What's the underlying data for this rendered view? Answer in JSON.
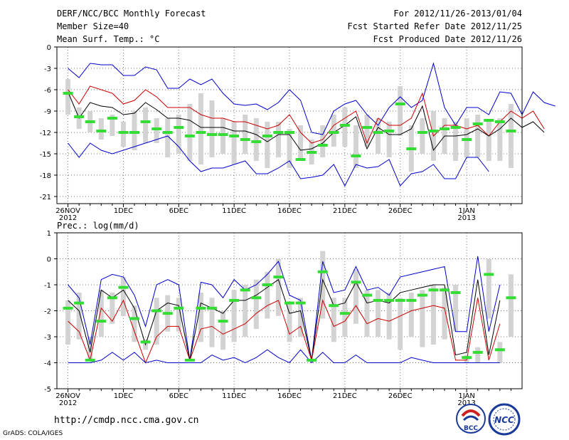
{
  "header": {
    "title": "DERF/NCC/BCC Monthly Forecast",
    "member": "Member Size=40",
    "variable": "Mean Surf. Temp.: °C",
    "period": "For 2012/11/26-2013/01/04",
    "started": "Fcst Started Refer Date 2012/11/25",
    "produced": "Fcst Produced Date 2012/11/26"
  },
  "footer": {
    "url": "http://cmdp.ncc.cma.gov.cn",
    "grads": "GrADS: COLA/IGES",
    "bcc_logo_text": "BCC",
    "ncc_logo_text": "NCC"
  },
  "colors": {
    "upper": "#0000cc",
    "spread": "#cc0000",
    "mean": "#000000",
    "box": "#d3d3d3",
    "median": "#33dd33"
  },
  "x_ticks": [
    {
      "day": 0,
      "label": "26NOV",
      "sub": "2012"
    },
    {
      "day": 5,
      "label": "1DEC",
      "sub": ""
    },
    {
      "day": 10,
      "label": "6DEC",
      "sub": ""
    },
    {
      "day": 15,
      "label": "11DEC",
      "sub": ""
    },
    {
      "day": 20,
      "label": "16DEC",
      "sub": ""
    },
    {
      "day": 25,
      "label": "21DEC",
      "sub": ""
    },
    {
      "day": 30,
      "label": "26DEC",
      "sub": ""
    },
    {
      "day": 36,
      "label": "1JAN",
      "sub": "2013"
    }
  ],
  "chart_data": [
    {
      "type": "line",
      "title": "Mean Surf. Temp.: °C",
      "x_unit": "days since 26NOV2012",
      "ylim": [
        -22,
        0
      ],
      "yticks": [
        0,
        -3,
        -6,
        -9,
        -12,
        -15,
        -18,
        -21
      ],
      "series": [
        {
          "name": "max",
          "color": "#0000cc",
          "values": [
            -13.5,
            -15.5,
            -13.5,
            -14.5,
            -15,
            -14.5,
            -14,
            -13.5,
            -13,
            -12.5,
            -14,
            -16,
            -17.5,
            -17,
            -17,
            -16.5,
            -16,
            -17.8,
            -17.8,
            -17,
            -16,
            -18.5,
            -18.3,
            -18,
            -16.5,
            -19.5,
            -16.5,
            -17,
            -16.8,
            -15.8,
            -19.5,
            -17.8,
            -17.5,
            -16.5,
            -18.5,
            -18.5,
            -15.5,
            -15.5,
            -17.5
          ]
        },
        {
          "name": "min",
          "color": "#0000cc",
          "values": [
            -3,
            -4.3,
            -2.3,
            -2.5,
            -2.5,
            -4,
            -4,
            -2.8,
            -3.2,
            -5.8,
            -5.8,
            -4.5,
            -5.3,
            -4.5,
            -6.5,
            -8,
            -8.2,
            -8,
            -8.8,
            -7.8,
            -6,
            -7.5,
            -12,
            -12.3,
            -9,
            -8,
            -7.5,
            -9.5,
            -11,
            -8.5,
            -7,
            -8.5,
            -7.5,
            -2.3,
            -8.5,
            -11,
            -8.5,
            -8.5,
            -9.5,
            -6.3,
            -6.5,
            -9.5,
            -6.3,
            -7.8,
            -8.3
          ]
        },
        {
          "name": "upper",
          "color": "#cc0000",
          "values": [
            -6,
            -8,
            -5.5,
            -6,
            -6.5,
            -8,
            -7.5,
            -6,
            -7,
            -8.5,
            -8.5,
            -8.5,
            -9.5,
            -10,
            -10,
            -10.5,
            -10.5,
            -11,
            -11.5,
            -11,
            -9.5,
            -12,
            -13.5,
            -13,
            -11,
            -10,
            -9,
            -13.5,
            -10,
            -11,
            -11,
            -10,
            -6.5,
            -12.5,
            -11,
            -11,
            -11.5,
            -11,
            -12.5,
            -10.5,
            -9,
            -10,
            -9,
            -11.5
          ]
        },
        {
          "name": "mean",
          "color": "#000000",
          "values": [
            -6.3,
            -10,
            -7.8,
            -8.3,
            -8.5,
            -9.5,
            -9.3,
            -7.8,
            -8.8,
            -10,
            -10,
            -10.3,
            -11.3,
            -11.3,
            -11.3,
            -11.8,
            -11.8,
            -12.3,
            -13.3,
            -12.3,
            -12.3,
            -14.5,
            -14.3,
            -13.5,
            -12,
            -11,
            -9.8,
            -14.3,
            -11.3,
            -12.3,
            -12.3,
            -11.5,
            -8.3,
            -14.5,
            -12.5,
            -12.5,
            -12.3,
            -11.5,
            -12.5,
            -11.5,
            -10,
            -11.3,
            -10.5,
            -12
          ]
        }
      ],
      "boxes": [
        {
          "day": 0,
          "low": -9.5,
          "high": -4.5,
          "median": -6.5
        },
        {
          "day": 1,
          "low": -11.5,
          "high": -8.5,
          "median": -9.8
        },
        {
          "day": 2,
          "low": -12,
          "high": -9,
          "median": -10.5
        },
        {
          "day": 3,
          "low": -13,
          "high": -10,
          "median": -11.8
        },
        {
          "day": 4,
          "low": -12.5,
          "high": -9.5,
          "median": -10
        },
        {
          "day": 5,
          "low": -14,
          "high": -10.5,
          "median": -12
        },
        {
          "day": 6,
          "low": -14.5,
          "high": -9,
          "median": -12
        },
        {
          "day": 7,
          "low": -13.5,
          "high": -8.5,
          "median": -10.5
        },
        {
          "day": 8,
          "low": -13.5,
          "high": -10,
          "median": -11.5
        },
        {
          "day": 9,
          "low": -15.5,
          "high": -10,
          "median": -12
        },
        {
          "day": 10,
          "low": -15,
          "high": -9.5,
          "median": -11.3
        },
        {
          "day": 11,
          "low": -16,
          "high": -8,
          "median": -12.5
        },
        {
          "day": 12,
          "low": -16.5,
          "high": -6.5,
          "median": -12
        },
        {
          "day": 13,
          "low": -15.5,
          "high": -7.5,
          "median": -12.3
        },
        {
          "day": 14,
          "low": -15,
          "high": -10,
          "median": -12.3
        },
        {
          "day": 15,
          "low": -16.5,
          "high": -10.5,
          "median": -12.5
        },
        {
          "day": 16,
          "low": -15,
          "high": -9.5,
          "median": -13
        },
        {
          "day": 17,
          "low": -16,
          "high": -10,
          "median": -13.3
        },
        {
          "day": 18,
          "low": -17,
          "high": -10.5,
          "median": -12.5
        },
        {
          "day": 19,
          "low": -15.5,
          "high": -10.5,
          "median": -12
        },
        {
          "day": 20,
          "low": -17,
          "high": -11.5,
          "median": -12
        },
        {
          "day": 21,
          "low": -16,
          "high": -11,
          "median": -15.8
        },
        {
          "day": 22,
          "low": -16.5,
          "high": -13,
          "median": -14.8
        },
        {
          "day": 23,
          "low": -15.5,
          "high": -11,
          "median": -13.8
        },
        {
          "day": 24,
          "low": -14,
          "high": -9.5,
          "median": -12
        },
        {
          "day": 25,
          "low": -14,
          "high": -8.5,
          "median": -11
        },
        {
          "day": 26,
          "low": -17,
          "high": -11,
          "median": -15.3
        },
        {
          "day": 27,
          "low": -14,
          "high": -9.5,
          "median": -11.3
        },
        {
          "day": 28,
          "low": -15,
          "high": -10,
          "median": -12
        },
        {
          "day": 29,
          "low": -15.5,
          "high": -10.5,
          "median": -11.8
        },
        {
          "day": 30,
          "low": -12.5,
          "high": -5.5,
          "median": -8
        },
        {
          "day": 31,
          "low": -17.5,
          "high": -11,
          "median": -14.3
        },
        {
          "day": 32,
          "low": -15,
          "high": -10,
          "median": -12
        },
        {
          "day": 33,
          "low": -16,
          "high": -9,
          "median": -11.8
        },
        {
          "day": 34,
          "low": -15,
          "high": -10,
          "median": -11.5
        },
        {
          "day": 35,
          "low": -16,
          "high": -10.5,
          "median": -11.3
        },
        {
          "day": 36,
          "low": -15.5,
          "high": -10,
          "median": -13
        },
        {
          "day": 37,
          "low": -15.5,
          "high": -9.5,
          "median": -10.8
        },
        {
          "day": 38,
          "low": -16,
          "high": -10.5,
          "median": -10.3
        },
        {
          "day": 39,
          "low": -16,
          "high": -10,
          "median": -10.5
        },
        {
          "day": 40,
          "low": -17,
          "high": -8,
          "median": -11.8
        }
      ]
    },
    {
      "type": "line",
      "title": "Prec.: log(mm/d)",
      "x_unit": "days since 26NOV2012",
      "ylim": [
        -5,
        1
      ],
      "yticks": [
        1,
        0,
        -1,
        -2,
        -3,
        -4,
        -5
      ],
      "series": [
        {
          "name": "upper",
          "color": "#0000cc",
          "values": [
            -1,
            -1.5,
            -3.3,
            -0.8,
            -0.6,
            -0.7,
            -1.4,
            -2.6,
            -1,
            -0.8,
            -1,
            -3.9,
            -0.9,
            -1,
            -1.5,
            -0.8,
            -1.2,
            -1,
            -0.6,
            -0.1,
            -1.4,
            -1.6,
            -3.9,
            -0.1,
            -1.3,
            -1.2,
            -0.3,
            -1.2,
            -1.1,
            -1.4,
            -0.7,
            -0.6,
            -0.5,
            -0.4,
            -0.3,
            -2.8,
            -2.8,
            0.1,
            -2.8,
            -1
          ]
        },
        {
          "name": "mean",
          "color": "#000000",
          "values": [
            -1.6,
            -2,
            -3.6,
            -1.2,
            -1.5,
            -1.2,
            -1.9,
            -3.3,
            -2,
            -1.7,
            -1.8,
            -3.9,
            -1.7,
            -1.9,
            -2.1,
            -1.6,
            -1.6,
            -1.4,
            -1.1,
            -0.8,
            -2.1,
            -2,
            -3.9,
            -0.8,
            -1.8,
            -1.7,
            -0.9,
            -1.7,
            -1.6,
            -1.7,
            -1.3,
            -1.2,
            -1.1,
            -1,
            -1,
            -3.7,
            -3.6,
            -0.8,
            -3.7,
            -1.6
          ]
        },
        {
          "name": "lower",
          "color": "#cc0000",
          "values": [
            -2.4,
            -2.8,
            -3.9,
            -1.9,
            -2.4,
            -1.6,
            -2.8,
            -4,
            -3,
            -2.6,
            -2.6,
            -3.9,
            -2.7,
            -2.6,
            -2.9,
            -2.7,
            -2.5,
            -2.1,
            -1.8,
            -1.6,
            -2.9,
            -2.6,
            -3.9,
            -1.6,
            -2.6,
            -2.4,
            -1.8,
            -2.5,
            -2.3,
            -2.4,
            -2.2,
            -2,
            -1.9,
            -1.8,
            -1.9,
            -3.9,
            -3.9,
            -1.5,
            -3.9,
            -2.5
          ]
        },
        {
          "name": "min",
          "color": "#0000cc",
          "values": [
            -4,
            -4,
            -4,
            -3.9,
            -3.6,
            -3.9,
            -3.6,
            -4,
            -3.9,
            -4,
            -4,
            -4,
            -4,
            -3.7,
            -3.9,
            -3.8,
            -4,
            -3.8,
            -3.5,
            -3.8,
            -4,
            -3.5,
            -4,
            -3.6,
            -4,
            -4,
            -3.7,
            -4,
            -4,
            -4,
            -4,
            -3.8,
            -3.9,
            -4,
            -4,
            -4,
            -4,
            -4,
            -4,
            -4
          ]
        }
      ],
      "boxes": [
        {
          "day": 0,
          "low": -3.3,
          "high": -1.6,
          "median": -1.9
        },
        {
          "day": 1,
          "low": -3.1,
          "high": -1.3,
          "median": -1.7
        },
        {
          "day": 2,
          "low": -3.9,
          "high": -3,
          "median": -3.9
        },
        {
          "day": 3,
          "low": -3,
          "high": -1.2,
          "median": -2.4
        },
        {
          "day": 4,
          "low": -2.5,
          "high": -1.3,
          "median": -1.5
        },
        {
          "day": 5,
          "low": -2.2,
          "high": -0.7,
          "median": -1.1
        },
        {
          "day": 6,
          "low": -3.2,
          "high": -1.8,
          "median": -2.3
        },
        {
          "day": 7,
          "low": -3.5,
          "high": -3.1,
          "median": -3.2
        },
        {
          "day": 8,
          "low": -3.3,
          "high": -1.5,
          "median": -2
        },
        {
          "day": 9,
          "low": -2.8,
          "high": -1.4,
          "median": -2.1
        },
        {
          "day": 10,
          "low": -2.8,
          "high": -1.5,
          "median": -1.9
        },
        {
          "day": 11,
          "low": -3.9,
          "high": -3.9,
          "median": -3.9
        },
        {
          "day": 12,
          "low": -3.2,
          "high": -1.3,
          "median": -1.9
        },
        {
          "day": 13,
          "low": -3.4,
          "high": -1.5,
          "median": -1.9
        },
        {
          "day": 14,
          "low": -3.5,
          "high": -2,
          "median": -2.4
        },
        {
          "day": 15,
          "low": -3.2,
          "high": -1.2,
          "median": -1.6
        },
        {
          "day": 16,
          "low": -3,
          "high": -1,
          "median": -1.2
        },
        {
          "day": 17,
          "low": -2.7,
          "high": -0.8,
          "median": -1.5
        },
        {
          "day": 18,
          "low": -2.3,
          "high": -0.5,
          "median": -1
        },
        {
          "day": 19,
          "low": -2.2,
          "high": 0,
          "median": -0.7
        },
        {
          "day": 20,
          "low": -3.2,
          "high": -1.7,
          "median": -1.7
        },
        {
          "day": 21,
          "low": -3,
          "high": -1.5,
          "median": -1.7
        },
        {
          "day": 22,
          "low": -3.9,
          "high": -3.9,
          "median": -3.9
        },
        {
          "day": 23,
          "low": -2.3,
          "high": 0.3,
          "median": -0.5
        },
        {
          "day": 24,
          "low": -3.2,
          "high": -1.5,
          "median": -1.8
        },
        {
          "day": 25,
          "low": -3,
          "high": -1.5,
          "median": -2.1
        },
        {
          "day": 26,
          "low": -2.5,
          "high": -0.4,
          "median": -0.9
        },
        {
          "day": 27,
          "low": -3,
          "high": -1.2,
          "median": -1.4
        },
        {
          "day": 28,
          "low": -3,
          "high": -1.2,
          "median": -1.6
        },
        {
          "day": 29,
          "low": -3.1,
          "high": -1.3,
          "median": -1.6
        },
        {
          "day": 30,
          "low": -3.5,
          "high": -1.5,
          "median": -1.6
        },
        {
          "day": 31,
          "low": -3,
          "high": -1.3,
          "median": -1.6
        },
        {
          "day": 32,
          "low": -3.4,
          "high": -1.2,
          "median": -1.4
        },
        {
          "day": 33,
          "low": -3.3,
          "high": -1,
          "median": -1.2
        },
        {
          "day": 34,
          "low": -3.1,
          "high": -1.1,
          "median": -1.2
        },
        {
          "day": 35,
          "low": -2.8,
          "high": -1,
          "median": -1.3
        },
        {
          "day": 36,
          "low": -4,
          "high": -3.7,
          "median": -3.8
        },
        {
          "day": 37,
          "low": -4,
          "high": -3.4,
          "median": -3.6
        },
        {
          "day": 38,
          "low": -2.3,
          "high": 0,
          "median": -0.6
        },
        {
          "day": 39,
          "low": -4,
          "high": -3.2,
          "median": -3.5
        },
        {
          "day": 40,
          "low": -3,
          "high": -0.6,
          "median": -1.5
        }
      ]
    }
  ]
}
